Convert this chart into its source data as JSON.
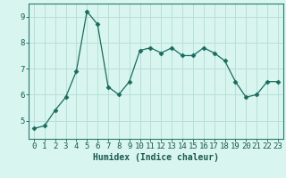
{
  "x": [
    0,
    1,
    2,
    3,
    4,
    5,
    6,
    7,
    8,
    9,
    10,
    11,
    12,
    13,
    14,
    15,
    16,
    17,
    18,
    19,
    20,
    21,
    22,
    23
  ],
  "y": [
    4.7,
    4.8,
    5.4,
    5.9,
    6.9,
    9.2,
    8.7,
    6.3,
    6.0,
    6.5,
    7.7,
    7.8,
    7.6,
    7.8,
    7.5,
    7.5,
    7.8,
    7.6,
    7.3,
    6.5,
    5.9,
    6.0,
    6.5,
    6.5
  ],
  "line_color": "#1a6b5e",
  "marker": "D",
  "markersize": 2.5,
  "linewidth": 0.9,
  "xlabel": "Humidex (Indice chaleur)",
  "xlabel_fontsize": 7,
  "bg_color": "#d8f5f0",
  "grid_color": "#b8e0d8",
  "axis_color": "#2a7a6a",
  "tick_color": "#1a5a4e",
  "ylim": [
    4.3,
    9.5
  ],
  "xlim": [
    -0.5,
    23.5
  ],
  "yticks": [
    5,
    6,
    7,
    8,
    9
  ],
  "xticks": [
    0,
    1,
    2,
    3,
    4,
    5,
    6,
    7,
    8,
    9,
    10,
    11,
    12,
    13,
    14,
    15,
    16,
    17,
    18,
    19,
    20,
    21,
    22,
    23
  ],
  "tick_fontsize": 6.5
}
